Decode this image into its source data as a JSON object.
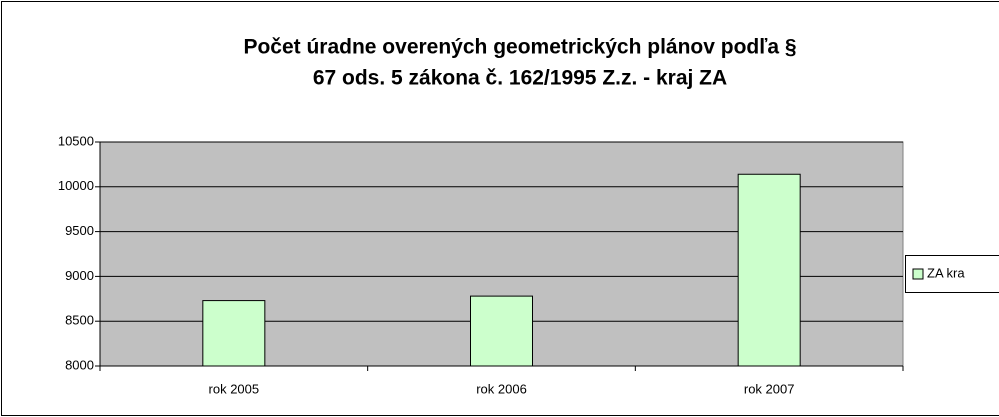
{
  "chart_data": {
    "type": "bar",
    "title": [
      "Počet úradne overených geometrických plánov podľa §",
      "67 ods. 5 zákona č. 162/1995 Z.z. - kraj ZA"
    ],
    "categories": [
      "rok 2005",
      "rok 2006",
      "rok 2007"
    ],
    "series": [
      {
        "name": "ZA kra",
        "color": "#ccffcc",
        "values": [
          8730,
          8780,
          10140
        ]
      }
    ],
    "ylim": [
      8000,
      10500
    ],
    "yticks": [
      8000,
      8500,
      9000,
      9500,
      10000,
      10500
    ],
    "grid": true,
    "plot_background": "#c0c0c0",
    "legend": "right"
  }
}
